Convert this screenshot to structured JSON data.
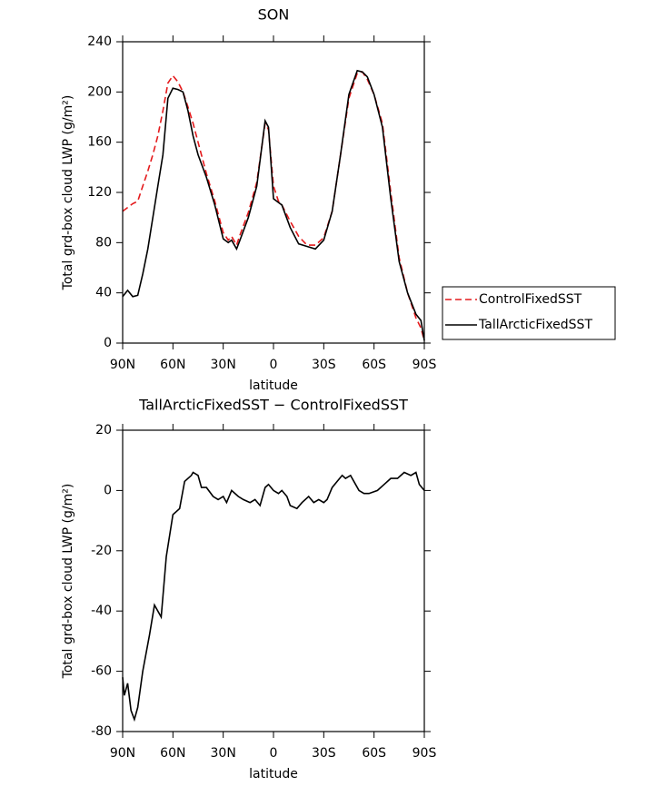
{
  "chart_data": [
    {
      "type": "line",
      "title": "SON",
      "x_label": "latitude",
      "y_label": "Total grd-box cloud LWP (g/m²)",
      "x": [
        90,
        87,
        84,
        81,
        78,
        75,
        72,
        69,
        66,
        63,
        60,
        57,
        54,
        51,
        48,
        45,
        40,
        35,
        30,
        27,
        25,
        22,
        20,
        15,
        10,
        5,
        3,
        0,
        -3,
        -5,
        -10,
        -15,
        -20,
        -25,
        -30,
        -35,
        -40,
        -45,
        -50,
        -53,
        -56,
        -60,
        -65,
        -70,
        -75,
        -80,
        -85,
        -88,
        -90
      ],
      "series": [
        {
          "name": "ControlFixedSST",
          "color": "#e41a1c",
          "dash": "dashed",
          "values": [
            105,
            108,
            111,
            113,
            125,
            137,
            150,
            165,
            185,
            207,
            213,
            208,
            200,
            188,
            175,
            160,
            135,
            113,
            88,
            82,
            85,
            78,
            86,
            104,
            128,
            175,
            170,
            125,
            113,
            110,
            97,
            85,
            78,
            78,
            84,
            105,
            150,
            195,
            215,
            216,
            210,
            198,
            175,
            120,
            68,
            40,
            20,
            12,
            2
          ]
        },
        {
          "name": "TallArcticFixedSST",
          "color": "#000000",
          "dash": "solid",
          "values": [
            37,
            42,
            37,
            38,
            55,
            75,
            100,
            125,
            150,
            195,
            203,
            202,
            200,
            185,
            165,
            150,
            132,
            110,
            83,
            80,
            82,
            75,
            82,
            100,
            125,
            177,
            172,
            115,
            112,
            110,
            92,
            79,
            77,
            75,
            82,
            105,
            150,
            198,
            217,
            216,
            212,
            198,
            172,
            115,
            65,
            40,
            23,
            18,
            2
          ]
        }
      ],
      "xlim": [
        90,
        -90
      ],
      "xticks": [
        {
          "value": 90,
          "label": "90N"
        },
        {
          "value": 60,
          "label": "60N"
        },
        {
          "value": 30,
          "label": "30N"
        },
        0,
        {
          "value": -30,
          "label": "30S"
        },
        {
          "value": -60,
          "label": "60S"
        },
        {
          "value": -90,
          "label": "90S"
        }
      ],
      "ylim": [
        0,
        240
      ],
      "yticks": [
        0,
        40,
        80,
        120,
        160,
        200,
        240
      ],
      "legend": "right"
    },
    {
      "type": "line",
      "title": "TallArcticFixedSST − ControlFixedSST",
      "x_label": "latitude",
      "y_label": "Total grd-box cloud LWP (g/m²)",
      "x": [
        90,
        89,
        87,
        85,
        83,
        81,
        78,
        74,
        71,
        67,
        64,
        60,
        56,
        53,
        49,
        48,
        45,
        43,
        40,
        36,
        33,
        30,
        28,
        25,
        21,
        18,
        14,
        11,
        8,
        5,
        3,
        0,
        -3,
        -5,
        -8,
        -10,
        -14,
        -17,
        -21,
        -24,
        -27,
        -30,
        -32,
        -35,
        -38,
        -41,
        -43,
        -46,
        -49,
        -51,
        -54,
        -57,
        -62,
        -66,
        -70,
        -74,
        -78,
        -82,
        -85,
        -87,
        -90
      ],
      "series": [
        {
          "color": "#000000",
          "dash": "solid",
          "values": [
            -62,
            -68,
            -64,
            -73,
            -76,
            -72,
            -60,
            -48,
            -38,
            -42,
            -22,
            -8,
            -6,
            3,
            5,
            6,
            5,
            1,
            1,
            -2,
            -3,
            -2,
            -4,
            0,
            -2,
            -3,
            -4,
            -3,
            -5,
            1,
            2,
            0,
            -1,
            0,
            -2,
            -5,
            -6,
            -4,
            -2,
            -4,
            -3,
            -4,
            -3,
            1,
            3,
            5,
            4,
            5,
            2,
            0,
            -1,
            -1,
            0,
            2,
            4,
            4,
            6,
            5,
            6,
            2,
            0
          ]
        }
      ],
      "xlim": [
        90,
        -90
      ],
      "xticks": [
        {
          "value": 90,
          "label": "90N"
        },
        {
          "value": 60,
          "label": "60N"
        },
        {
          "value": 30,
          "label": "30N"
        },
        0,
        {
          "value": -30,
          "label": "30S"
        },
        {
          "value": -60,
          "label": "60S"
        },
        {
          "value": -90,
          "label": "90S"
        }
      ],
      "ylim": [
        -80,
        20
      ],
      "yticks": [
        -80,
        -60,
        -40,
        -20,
        0,
        20
      ]
    }
  ]
}
